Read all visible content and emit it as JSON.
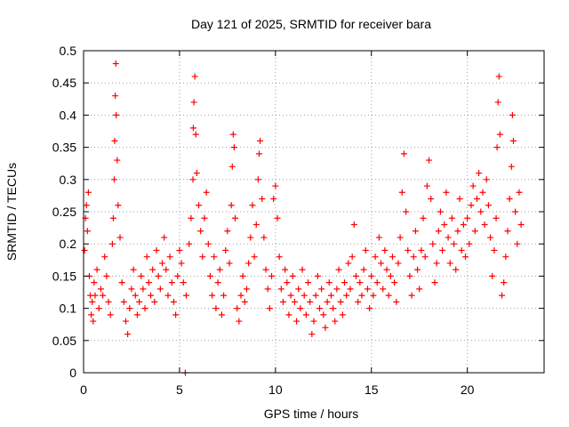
{
  "chart_data": {
    "type": "scatter",
    "title": "Day 121 of 2025, SRMTID for receiver bara",
    "xlabel": "GPS time / hours",
    "ylabel": "SRMTID / TECUs",
    "xlim": [
      0,
      24
    ],
    "ylim": [
      0,
      0.5
    ],
    "x_ticks": [
      0,
      5,
      10,
      15,
      20
    ],
    "x_tick_labels": [
      "0",
      "5",
      "10",
      "15",
      "20"
    ],
    "y_ticks": [
      0,
      0.05,
      0.1,
      0.15,
      0.2,
      0.25,
      0.3,
      0.35,
      0.4,
      0.45,
      0.5
    ],
    "y_tick_labels": [
      "0",
      "0.05",
      "0.1",
      "0.15",
      "0.2",
      "0.25",
      "0.3",
      "0.35",
      "0.4",
      "0.45",
      "0.5"
    ],
    "grid": true,
    "marker": "plus",
    "series": [
      {
        "name": "SRMTID",
        "color": "#ff0000",
        "points": [
          [
            0.05,
            0.19
          ],
          [
            0.1,
            0.24
          ],
          [
            0.15,
            0.26
          ],
          [
            0.2,
            0.22
          ],
          [
            0.25,
            0.28
          ],
          [
            0.3,
            0.15
          ],
          [
            0.35,
            0.12
          ],
          [
            0.4,
            0.09
          ],
          [
            0.45,
            0.11
          ],
          [
            0.5,
            0.08
          ],
          [
            0.55,
            0.14
          ],
          [
            0.6,
            0.12
          ],
          [
            0.7,
            0.16
          ],
          [
            0.8,
            0.1
          ],
          [
            0.9,
            0.13
          ],
          [
            1.0,
            0.12
          ],
          [
            1.1,
            0.18
          ],
          [
            1.2,
            0.15
          ],
          [
            1.3,
            0.11
          ],
          [
            1.4,
            0.09
          ],
          [
            1.5,
            0.2
          ],
          [
            1.55,
            0.24
          ],
          [
            1.6,
            0.3
          ],
          [
            1.62,
            0.36
          ],
          [
            1.65,
            0.43
          ],
          [
            1.68,
            0.48
          ],
          [
            1.7,
            0.4
          ],
          [
            1.75,
            0.33
          ],
          [
            1.8,
            0.26
          ],
          [
            1.9,
            0.21
          ],
          [
            2.0,
            0.14
          ],
          [
            2.1,
            0.11
          ],
          [
            2.2,
            0.08
          ],
          [
            2.3,
            0.06
          ],
          [
            2.4,
            0.1
          ],
          [
            2.5,
            0.13
          ],
          [
            2.6,
            0.16
          ],
          [
            2.7,
            0.12
          ],
          [
            2.8,
            0.09
          ],
          [
            2.9,
            0.11
          ],
          [
            3.0,
            0.15
          ],
          [
            3.1,
            0.13
          ],
          [
            3.2,
            0.1
          ],
          [
            3.3,
            0.18
          ],
          [
            3.4,
            0.14
          ],
          [
            3.5,
            0.12
          ],
          [
            3.6,
            0.16
          ],
          [
            3.7,
            0.11
          ],
          [
            3.8,
            0.19
          ],
          [
            3.9,
            0.15
          ],
          [
            4.0,
            0.13
          ],
          [
            4.1,
            0.17
          ],
          [
            4.2,
            0.21
          ],
          [
            4.3,
            0.16
          ],
          [
            4.4,
            0.12
          ],
          [
            4.5,
            0.18
          ],
          [
            4.6,
            0.14
          ],
          [
            4.7,
            0.11
          ],
          [
            4.8,
            0.09
          ],
          [
            4.9,
            0.15
          ],
          [
            5.0,
            0.19
          ],
          [
            5.1,
            0.17
          ],
          [
            5.2,
            0.14
          ],
          [
            5.3,
            0.0
          ],
          [
            5.35,
            0.12
          ],
          [
            5.5,
            0.2
          ],
          [
            5.6,
            0.24
          ],
          [
            5.7,
            0.3
          ],
          [
            5.72,
            0.38
          ],
          [
            5.75,
            0.42
          ],
          [
            5.8,
            0.46
          ],
          [
            5.85,
            0.37
          ],
          [
            5.9,
            0.31
          ],
          [
            6.0,
            0.26
          ],
          [
            6.1,
            0.22
          ],
          [
            6.2,
            0.18
          ],
          [
            6.3,
            0.24
          ],
          [
            6.4,
            0.28
          ],
          [
            6.5,
            0.2
          ],
          [
            6.6,
            0.15
          ],
          [
            6.7,
            0.12
          ],
          [
            6.8,
            0.18
          ],
          [
            6.9,
            0.1
          ],
          [
            7.0,
            0.14
          ],
          [
            7.1,
            0.16
          ],
          [
            7.2,
            0.09
          ],
          [
            7.3,
            0.12
          ],
          [
            7.4,
            0.19
          ],
          [
            7.5,
            0.22
          ],
          [
            7.6,
            0.17
          ],
          [
            7.7,
            0.26
          ],
          [
            7.75,
            0.32
          ],
          [
            7.8,
            0.37
          ],
          [
            7.85,
            0.35
          ],
          [
            7.9,
            0.24
          ],
          [
            8.0,
            0.1
          ],
          [
            8.1,
            0.08
          ],
          [
            8.2,
            0.12
          ],
          [
            8.3,
            0.15
          ],
          [
            8.4,
            0.11
          ],
          [
            8.5,
            0.13
          ],
          [
            8.6,
            0.17
          ],
          [
            8.7,
            0.21
          ],
          [
            8.8,
            0.26
          ],
          [
            8.9,
            0.18
          ],
          [
            9.0,
            0.23
          ],
          [
            9.1,
            0.3
          ],
          [
            9.15,
            0.34
          ],
          [
            9.2,
            0.36
          ],
          [
            9.3,
            0.27
          ],
          [
            9.4,
            0.21
          ],
          [
            9.5,
            0.16
          ],
          [
            9.6,
            0.13
          ],
          [
            9.7,
            0.1
          ],
          [
            9.8,
            0.15
          ],
          [
            9.9,
            0.27
          ],
          [
            10.0,
            0.29
          ],
          [
            10.1,
            0.24
          ],
          [
            10.2,
            0.18
          ],
          [
            10.3,
            0.13
          ],
          [
            10.4,
            0.11
          ],
          [
            10.5,
            0.16
          ],
          [
            10.6,
            0.14
          ],
          [
            10.7,
            0.09
          ],
          [
            10.8,
            0.12
          ],
          [
            10.9,
            0.15
          ],
          [
            11.0,
            0.11
          ],
          [
            11.1,
            0.08
          ],
          [
            11.2,
            0.13
          ],
          [
            11.3,
            0.1
          ],
          [
            11.4,
            0.16
          ],
          [
            11.5,
            0.12
          ],
          [
            11.6,
            0.09
          ],
          [
            11.7,
            0.14
          ],
          [
            11.8,
            0.11
          ],
          [
            11.9,
            0.06
          ],
          [
            12.0,
            0.08
          ],
          [
            12.1,
            0.12
          ],
          [
            12.2,
            0.15
          ],
          [
            12.3,
            0.1
          ],
          [
            12.4,
            0.13
          ],
          [
            12.5,
            0.09
          ],
          [
            12.6,
            0.07
          ],
          [
            12.7,
            0.11
          ],
          [
            12.8,
            0.14
          ],
          [
            12.9,
            0.12
          ],
          [
            13.0,
            0.1
          ],
          [
            13.1,
            0.08
          ],
          [
            13.2,
            0.13
          ],
          [
            13.3,
            0.16
          ],
          [
            13.4,
            0.11
          ],
          [
            13.5,
            0.09
          ],
          [
            13.6,
            0.14
          ],
          [
            13.7,
            0.12
          ],
          [
            13.8,
            0.17
          ],
          [
            13.9,
            0.13
          ],
          [
            14.0,
            0.18
          ],
          [
            14.1,
            0.23
          ],
          [
            14.2,
            0.15
          ],
          [
            14.3,
            0.11
          ],
          [
            14.4,
            0.14
          ],
          [
            14.5,
            0.12
          ],
          [
            14.6,
            0.16
          ],
          [
            14.7,
            0.19
          ],
          [
            14.8,
            0.13
          ],
          [
            14.9,
            0.1
          ],
          [
            15.0,
            0.15
          ],
          [
            15.1,
            0.12
          ],
          [
            15.2,
            0.18
          ],
          [
            15.3,
            0.14
          ],
          [
            15.4,
            0.21
          ],
          [
            15.5,
            0.17
          ],
          [
            15.6,
            0.13
          ],
          [
            15.7,
            0.19
          ],
          [
            15.8,
            0.16
          ],
          [
            15.9,
            0.12
          ],
          [
            16.0,
            0.15
          ],
          [
            16.1,
            0.18
          ],
          [
            16.2,
            0.14
          ],
          [
            16.3,
            0.11
          ],
          [
            16.4,
            0.17
          ],
          [
            16.5,
            0.21
          ],
          [
            16.6,
            0.28
          ],
          [
            16.7,
            0.34
          ],
          [
            16.8,
            0.25
          ],
          [
            16.9,
            0.19
          ],
          [
            17.0,
            0.15
          ],
          [
            17.1,
            0.12
          ],
          [
            17.2,
            0.18
          ],
          [
            17.3,
            0.22
          ],
          [
            17.4,
            0.16
          ],
          [
            17.5,
            0.13
          ],
          [
            17.6,
            0.19
          ],
          [
            17.7,
            0.24
          ],
          [
            17.8,
            0.18
          ],
          [
            17.9,
            0.29
          ],
          [
            18.0,
            0.33
          ],
          [
            18.1,
            0.27
          ],
          [
            18.2,
            0.2
          ],
          [
            18.3,
            0.14
          ],
          [
            18.4,
            0.17
          ],
          [
            18.5,
            0.22
          ],
          [
            18.6,
            0.25
          ],
          [
            18.7,
            0.19
          ],
          [
            18.8,
            0.23
          ],
          [
            18.9,
            0.28
          ],
          [
            19.0,
            0.21
          ],
          [
            19.1,
            0.17
          ],
          [
            19.2,
            0.24
          ],
          [
            19.3,
            0.2
          ],
          [
            19.4,
            0.16
          ],
          [
            19.5,
            0.22
          ],
          [
            19.6,
            0.27
          ],
          [
            19.7,
            0.19
          ],
          [
            19.8,
            0.23
          ],
          [
            19.9,
            0.18
          ],
          [
            20.0,
            0.24
          ],
          [
            20.1,
            0.2
          ],
          [
            20.2,
            0.26
          ],
          [
            20.3,
            0.29
          ],
          [
            20.4,
            0.22
          ],
          [
            20.5,
            0.27
          ],
          [
            20.6,
            0.31
          ],
          [
            20.7,
            0.25
          ],
          [
            20.8,
            0.28
          ],
          [
            20.9,
            0.23
          ],
          [
            21.0,
            0.3
          ],
          [
            21.1,
            0.26
          ],
          [
            21.2,
            0.21
          ],
          [
            21.3,
            0.15
          ],
          [
            21.4,
            0.19
          ],
          [
            21.5,
            0.24
          ],
          [
            21.55,
            0.35
          ],
          [
            21.6,
            0.42
          ],
          [
            21.65,
            0.46
          ],
          [
            21.7,
            0.37
          ],
          [
            21.8,
            0.12
          ],
          [
            21.9,
            0.14
          ],
          [
            22.0,
            0.18
          ],
          [
            22.1,
            0.22
          ],
          [
            22.2,
            0.27
          ],
          [
            22.3,
            0.32
          ],
          [
            22.35,
            0.4
          ],
          [
            22.4,
            0.36
          ],
          [
            22.5,
            0.25
          ],
          [
            22.6,
            0.2
          ],
          [
            22.7,
            0.28
          ],
          [
            22.8,
            0.23
          ]
        ]
      }
    ]
  }
}
